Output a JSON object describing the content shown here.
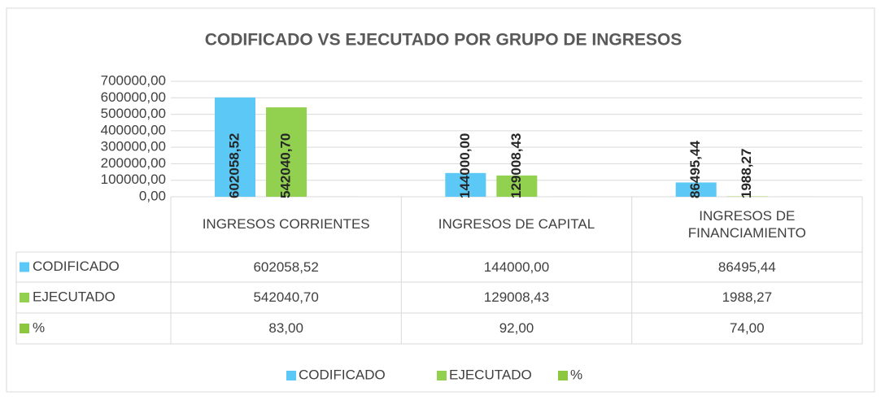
{
  "chart_data": {
    "type": "bar",
    "title": "CODIFICADO VS EJECUTADO POR GRUPO DE INGRESOS",
    "categories": [
      "INGRESOS CORRIENTES",
      "INGRESOS DE CAPITAL",
      "INGRESOS DE FINANCIAMIENTO"
    ],
    "series": [
      {
        "name": "CODIFICADO",
        "color": "#5bc8f5",
        "values": [
          602058.52,
          144000.0,
          86495.44
        ],
        "value_labels": [
          "602058,52",
          "144000,00",
          "86495,44"
        ]
      },
      {
        "name": "EJECUTADO",
        "color": "#92d050",
        "values": [
          542040.7,
          129008.43,
          1988.27
        ],
        "value_labels": [
          "542040,70",
          "129008,43",
          "1988,27"
        ]
      },
      {
        "name": "%",
        "color": "#8dc63f",
        "values": [
          83.0,
          92.0,
          74.0
        ],
        "value_labels": [
          "83,00",
          "92,00",
          "74,00"
        ]
      }
    ],
    "ylim": [
      0,
      700000
    ],
    "yticks": [
      {
        "value": 0,
        "label": "0,00"
      },
      {
        "value": 100000,
        "label": "100000,00"
      },
      {
        "value": 200000,
        "label": "200000,00"
      },
      {
        "value": 300000,
        "label": "300000,00"
      },
      {
        "value": 400000,
        "label": "400000,00"
      },
      {
        "value": 500000,
        "label": "500000,00"
      },
      {
        "value": 600000,
        "label": "600000,00"
      },
      {
        "value": 700000,
        "label": "700000,00"
      }
    ],
    "grid": true,
    "legend": "bottom"
  }
}
